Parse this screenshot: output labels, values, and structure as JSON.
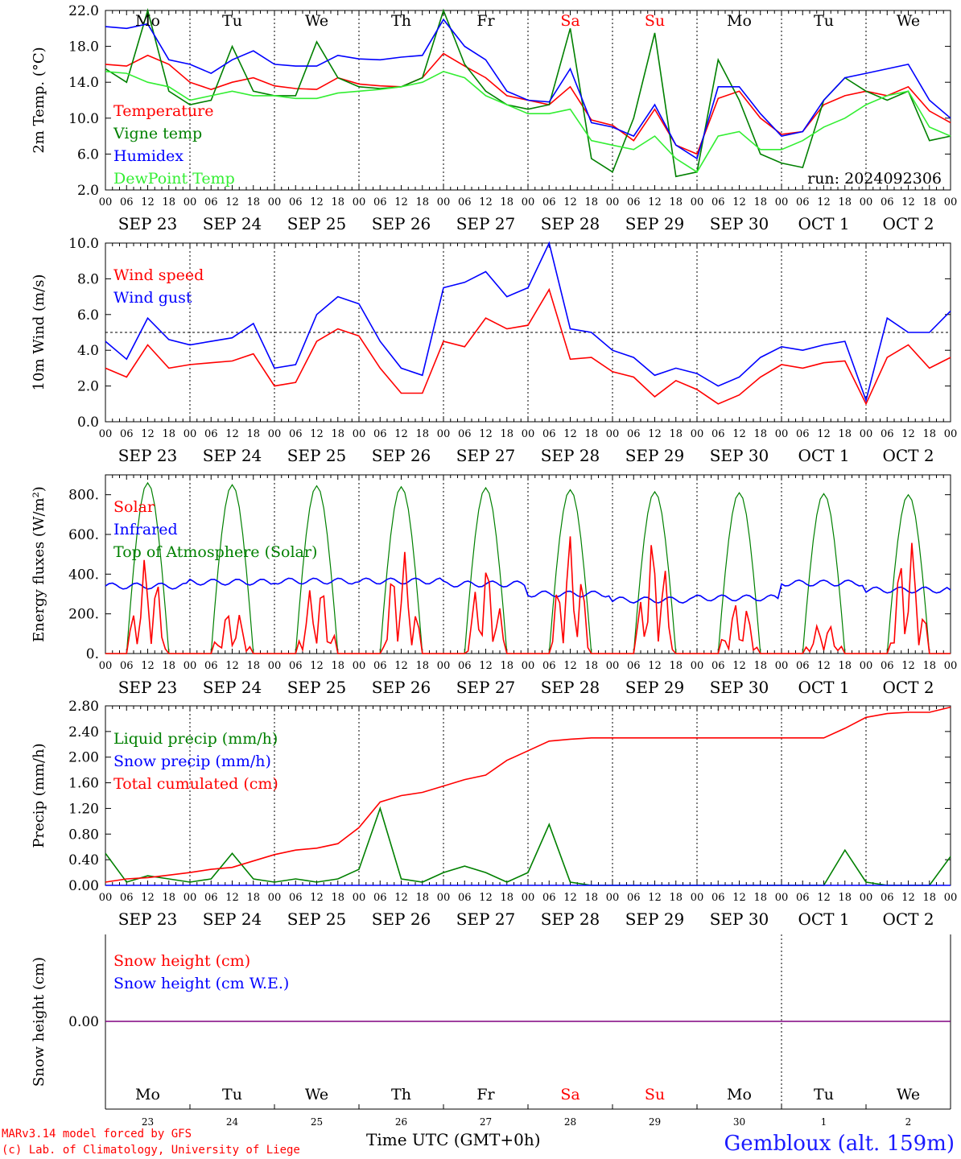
{
  "footer": {
    "credit_line1": "MARv3.14 model forced by GFS",
    "credit_line2": "(c) Lab. of Climatology, University of Liege",
    "x_axis_label": "Time UTC (GMT+0h)",
    "location": "Gembloux (alt. 159m)"
  },
  "colors": {
    "red": "#ff0000",
    "green": "#008000",
    "blue": "#0000ff",
    "lightgreen": "#33ee33",
    "purple": "#800080"
  },
  "chart_data": [
    {
      "type": "line",
      "id": "temperature",
      "ylabel": "2m Temp. (°C)",
      "ylim": [
        2.0,
        22.0
      ],
      "yticks": [
        "2.0",
        "6.0",
        "10.0",
        "14.0",
        "18.0",
        "22.0"
      ],
      "run_label": "run: 2024092306",
      "weekdays": [
        "Mo",
        "Tu",
        "We",
        "Th",
        "Fr",
        "Sa",
        "Su",
        "Mo",
        "Tu",
        "We"
      ],
      "x_hours": [
        0,
        6,
        12,
        18,
        24,
        30,
        36,
        42,
        48,
        54,
        60,
        66,
        72,
        78,
        84,
        90,
        96,
        102,
        108,
        114,
        120,
        126,
        132,
        138,
        144,
        150,
        156,
        162,
        168,
        174,
        180,
        186,
        192,
        198,
        204,
        210,
        216,
        222,
        228,
        234,
        240
      ],
      "series": [
        {
          "name": "Temperature",
          "color": "#ff0000",
          "values": [
            16.0,
            15.8,
            17.0,
            16.0,
            14.0,
            13.2,
            14.0,
            14.5,
            13.6,
            13.3,
            13.2,
            14.5,
            13.8,
            13.6,
            13.5,
            14.5,
            17.2,
            15.8,
            14.5,
            12.5,
            12.0,
            11.5,
            13.5,
            9.8,
            9.2,
            7.5,
            11.0,
            7.0,
            6.0,
            12.2,
            13.0,
            10.0,
            8.2,
            8.5,
            11.5,
            12.5,
            13.0,
            12.5,
            13.5,
            10.8,
            9.5
          ]
        },
        {
          "name": "Vigne temp",
          "color": "#008000",
          "values": [
            15.5,
            14.0,
            22.0,
            13.0,
            11.5,
            12.0,
            18.0,
            13.0,
            12.5,
            12.5,
            18.5,
            14.5,
            13.5,
            13.3,
            13.5,
            14.5,
            22.0,
            16.0,
            13.0,
            11.5,
            11.0,
            11.5,
            20.0,
            5.5,
            4.0,
            10.0,
            19.5,
            3.5,
            4.0,
            16.5,
            12.0,
            6.0,
            5.0,
            4.5,
            12.0,
            14.5,
            13.0,
            12.0,
            13.0,
            7.5,
            8.0
          ]
        },
        {
          "name": "Humidex",
          "color": "#0000ff",
          "values": [
            20.2,
            20.0,
            20.5,
            16.5,
            16.0,
            15.0,
            16.5,
            17.5,
            16.0,
            15.8,
            15.8,
            17.0,
            16.6,
            16.5,
            16.8,
            17.0,
            21.0,
            18.0,
            16.5,
            13.0,
            12.0,
            11.8,
            15.5,
            9.5,
            9.0,
            8.0,
            11.5,
            7.0,
            5.5,
            13.5,
            13.5,
            10.5,
            8.0,
            8.5,
            12.0,
            14.5,
            15.0,
            15.5,
            16.0,
            12.0,
            10.0
          ]
        },
        {
          "name": "DewPoint Temp",
          "color": "#33ee33",
          "values": [
            15.2,
            15.0,
            14.0,
            13.5,
            12.0,
            12.5,
            13.0,
            12.5,
            12.5,
            12.2,
            12.2,
            12.8,
            13.0,
            13.2,
            13.5,
            14.0,
            15.2,
            14.5,
            12.5,
            11.5,
            10.5,
            10.5,
            11.0,
            7.5,
            7.0,
            6.5,
            8.0,
            5.5,
            4.0,
            8.0,
            8.5,
            6.5,
            6.5,
            7.5,
            9.0,
            10.0,
            11.5,
            12.5,
            13.0,
            9.0,
            8.0
          ]
        }
      ]
    },
    {
      "type": "line",
      "id": "wind",
      "ylabel": "10m Wind (m/s)",
      "ylim": [
        0.0,
        10.0
      ],
      "yticks": [
        "0.0",
        "2.0",
        "4.0",
        "6.0",
        "8.0",
        "10.0"
      ],
      "reference_line": 5.0,
      "x_hours": [
        0,
        6,
        12,
        18,
        24,
        30,
        36,
        42,
        48,
        54,
        60,
        66,
        72,
        78,
        84,
        90,
        96,
        102,
        108,
        114,
        120,
        126,
        132,
        138,
        144,
        150,
        156,
        162,
        168,
        174,
        180,
        186,
        192,
        198,
        204,
        210,
        216,
        222,
        228,
        234,
        240
      ],
      "series": [
        {
          "name": "Wind speed",
          "color": "#ff0000",
          "values": [
            3.0,
            2.5,
            4.3,
            3.0,
            3.2,
            3.3,
            3.4,
            3.8,
            2.0,
            2.2,
            4.5,
            5.2,
            4.8,
            3.0,
            1.6,
            1.6,
            4.5,
            4.2,
            5.8,
            5.2,
            5.4,
            7.4,
            3.5,
            3.6,
            2.8,
            2.5,
            1.4,
            2.3,
            1.8,
            1.0,
            1.5,
            2.5,
            3.2,
            3.0,
            3.3,
            3.4,
            1.0,
            3.6,
            4.3,
            3.0,
            3.6
          ]
        },
        {
          "name": "Wind gust",
          "color": "#0000ff",
          "values": [
            4.5,
            3.5,
            5.8,
            4.6,
            4.3,
            4.5,
            4.7,
            5.5,
            3.0,
            3.2,
            6.0,
            7.0,
            6.6,
            4.5,
            3.0,
            2.6,
            7.5,
            7.8,
            8.4,
            7.0,
            7.5,
            10.0,
            5.2,
            5.0,
            4.0,
            3.6,
            2.6,
            3.0,
            2.7,
            2.0,
            2.5,
            3.6,
            4.2,
            4.0,
            4.3,
            4.5,
            1.2,
            5.8,
            5.0,
            5.0,
            6.2
          ]
        }
      ]
    },
    {
      "type": "line",
      "id": "energy",
      "ylabel": "Energy fluxes (W/m²)",
      "ylim": [
        0,
        900
      ],
      "yticks": [
        "0.",
        "200.",
        "400.",
        "600.",
        "800."
      ],
      "series": [
        {
          "name": "Solar",
          "color": "#ff0000",
          "daily_peaks": [
            490,
            230,
            370,
            530,
            460,
            600,
            590,
            270,
            160,
            590
          ]
        },
        {
          "name": "Infrared",
          "color": "#0000ff",
          "daily_levels": [
            340,
            360,
            365,
            365,
            350,
            300,
            270,
            280,
            355,
            320
          ]
        },
        {
          "name": "Top of Atmosphere (Solar)",
          "color": "#008000",
          "daily_peaks": [
            860,
            850,
            845,
            840,
            835,
            825,
            815,
            810,
            805,
            800
          ]
        }
      ]
    },
    {
      "type": "line",
      "id": "precip",
      "ylabel": "Precip (mm/h)",
      "ylim": [
        0.0,
        2.8
      ],
      "yticks": [
        "0.00",
        "0.40",
        "0.80",
        "1.20",
        "1.60",
        "2.00",
        "2.40",
        "2.80"
      ],
      "x_hours": [
        0,
        6,
        12,
        18,
        24,
        30,
        36,
        42,
        48,
        54,
        60,
        66,
        72,
        78,
        84,
        90,
        96,
        102,
        108,
        114,
        120,
        126,
        132,
        138,
        144,
        150,
        156,
        162,
        168,
        174,
        180,
        186,
        192,
        198,
        204,
        210,
        216,
        222,
        228,
        234,
        240
      ],
      "series": [
        {
          "name": "Liquid precip (mm/h)",
          "color": "#008000",
          "values": [
            0.5,
            0.05,
            0.15,
            0.1,
            0.05,
            0.1,
            0.5,
            0.1,
            0.05,
            0.1,
            0.05,
            0.1,
            0.25,
            1.2,
            0.1,
            0.05,
            0.2,
            0.3,
            0.2,
            0.05,
            0.2,
            0.95,
            0.05,
            0.0,
            0.0,
            0.0,
            0.0,
            0.0,
            0.0,
            0.0,
            0.0,
            0.0,
            0.0,
            0.0,
            0.0,
            0.55,
            0.05,
            0.0,
            0.0,
            0.0,
            0.45
          ]
        },
        {
          "name": "Snow precip (mm/h)",
          "color": "#0000ff",
          "values": [
            0,
            0,
            0,
            0,
            0,
            0,
            0,
            0,
            0,
            0,
            0,
            0,
            0,
            0,
            0,
            0,
            0,
            0,
            0,
            0,
            0,
            0,
            0,
            0,
            0,
            0,
            0,
            0,
            0,
            0,
            0,
            0,
            0,
            0,
            0,
            0,
            0,
            0,
            0,
            0,
            0
          ]
        },
        {
          "name": "Total cumulated (cm)",
          "color": "#ff0000",
          "values": [
            0.05,
            0.1,
            0.12,
            0.16,
            0.2,
            0.25,
            0.28,
            0.38,
            0.48,
            0.55,
            0.58,
            0.65,
            0.9,
            1.3,
            1.4,
            1.45,
            1.55,
            1.65,
            1.72,
            1.95,
            2.1,
            2.25,
            2.28,
            2.3,
            2.3,
            2.3,
            2.3,
            2.3,
            2.3,
            2.3,
            2.3,
            2.3,
            2.3,
            2.3,
            2.3,
            2.45,
            2.62,
            2.68,
            2.7,
            2.7,
            2.78
          ]
        }
      ]
    },
    {
      "type": "line",
      "id": "snow",
      "ylabel": "Snow height (cm)",
      "ytick": "0.00",
      "series": [
        {
          "name": "Snow height (cm)",
          "color": "#ff0000",
          "values": [
            0.0,
            0.0
          ]
        },
        {
          "name": "Snow height (cm W.E.)",
          "color": "#0000ff",
          "values": [
            0.0,
            0.0
          ]
        }
      ]
    }
  ],
  "date_labels": [
    "SEP 23",
    "SEP 24",
    "SEP 25",
    "SEP 26",
    "SEP 27",
    "SEP 28",
    "SEP 29",
    "SEP 30",
    "OCT  1",
    "OCT  2"
  ],
  "day_numbers": [
    "23",
    "24",
    "25",
    "26",
    "27",
    "28",
    "29",
    "30",
    "1",
    "2"
  ],
  "hour_ticks": [
    "00",
    "06",
    "12",
    "18"
  ],
  "hour_end": "00",
  "weekend_days": [
    5,
    6
  ]
}
